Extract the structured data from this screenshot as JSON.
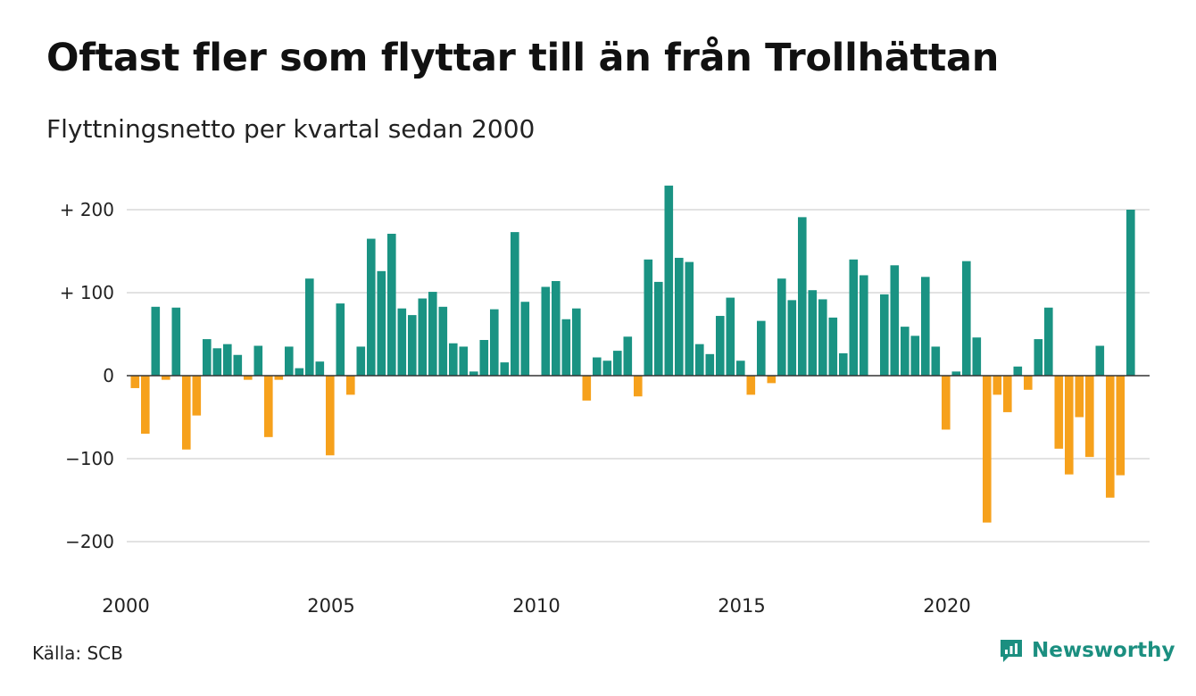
{
  "header": {
    "title": "Oftast fler som flyttar till än från Trollhättan",
    "subtitle": "Flyttningsnetto per kvartal sedan 2000"
  },
  "footer": {
    "source": "Källa: SCB",
    "brand_name": "Newsworthy",
    "brand_icon": "newsworthy-logo-icon"
  },
  "colors": {
    "positive": "#1a9383",
    "negative": "#f6a11c",
    "grid": "#d9d9d9",
    "baseline": "#333333",
    "brand": "#1b8f80"
  },
  "chart_data": {
    "type": "bar",
    "title": "Oftast fler som flyttar till än från Trollhättan",
    "subtitle": "Flyttningsnetto per kvartal sedan 2000",
    "x_start_year": 2000,
    "periods_per_year": 4,
    "ylim": [
      -220,
      230
    ],
    "y_ticks": [
      200,
      100,
      0,
      -100,
      -200
    ],
    "y_tick_labels": [
      "+ 200",
      "+ 100",
      "0",
      "−100",
      "−200"
    ],
    "x_tick_labels": [
      "2000",
      "2005",
      "2010",
      "2015",
      "2020"
    ],
    "grid": true,
    "series": [
      {
        "values": [
          -15,
          -70,
          83,
          -5,
          82,
          -89,
          -48,
          44,
          33,
          38,
          25,
          -5,
          36,
          -74,
          -5,
          35,
          9,
          117,
          17,
          -96,
          87,
          -23,
          35,
          165,
          126,
          171,
          81,
          73,
          93,
          101,
          83,
          39,
          35,
          5,
          43,
          80,
          16,
          173,
          89,
          0,
          107,
          114,
          68,
          81,
          -30,
          22,
          18,
          30,
          47,
          -25,
          140,
          113,
          229,
          142,
          137,
          38,
          26,
          72,
          94,
          18,
          -23,
          66,
          -9,
          117,
          91,
          191,
          103,
          92,
          70,
          27,
          140,
          121,
          0,
          98,
          133,
          59,
          48,
          119,
          35,
          -65,
          5,
          138,
          46,
          -177,
          -23,
          -44,
          11,
          -17,
          44,
          82,
          -88,
          -119,
          -50,
          -98,
          36,
          -147,
          -120,
          200
        ]
      }
    ]
  }
}
